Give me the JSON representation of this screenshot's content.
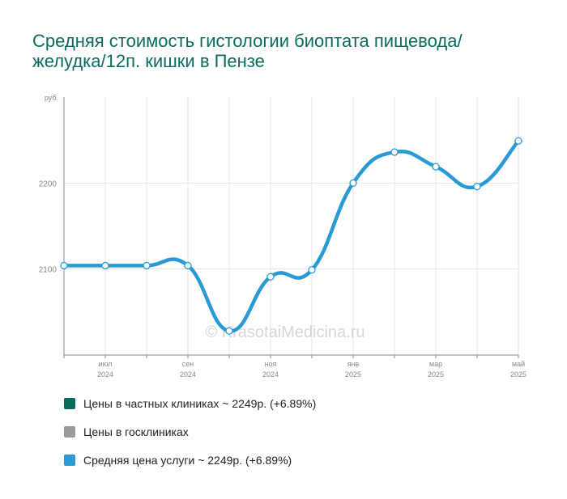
{
  "chart_data": {
    "type": "line",
    "title": "Средняя стоимость гистологии биоптата пищевода/желудка/12п. кишки в Пензе",
    "ylabel": "руб.",
    "ylim": [
      2000,
      2300
    ],
    "yticks": [
      2100,
      2200
    ],
    "grid": true,
    "watermark": "© KrasotaiMedicina.ru",
    "x": [
      "2024-06",
      "2024-07",
      "2024-08",
      "2024-09",
      "2024-10",
      "2024-11",
      "2024-12",
      "2025-01",
      "2025-02",
      "2025-03",
      "2025-04",
      "2025-05"
    ],
    "xtick_labels": [
      {
        "month": "июл",
        "year": "2024"
      },
      {
        "month": "сен",
        "year": "2024"
      },
      {
        "month": "ноя",
        "year": "2024"
      },
      {
        "month": "янв",
        "year": "2025"
      },
      {
        "month": "мар",
        "year": "2025"
      },
      {
        "month": "май",
        "year": "2025"
      }
    ],
    "xtick_values": [
      "2024-07",
      "2024-09",
      "2024-11",
      "2025-01",
      "2025-03",
      "2025-05"
    ],
    "series": [
      {
        "name": "Средняя цена услуги ~ 2249р. (+6.89%)",
        "color": "#2a9ad6",
        "values": [
          2104,
          2104,
          2104,
          2104,
          2028,
          2091,
          2099,
          2200,
          2236,
          2219,
          2196,
          2249
        ]
      }
    ],
    "legend": [
      {
        "label": "Цены в частных клиниках ~ 2249р. (+6.89%)",
        "color": "#0b6b5e"
      },
      {
        "label": "Цены в госклиниках",
        "color": "#9a9a9a"
      },
      {
        "label": "Средняя цена услуги ~ 2249р. (+6.89%)",
        "color": "#2a9ad6"
      }
    ],
    "legend_position": "bottom"
  }
}
